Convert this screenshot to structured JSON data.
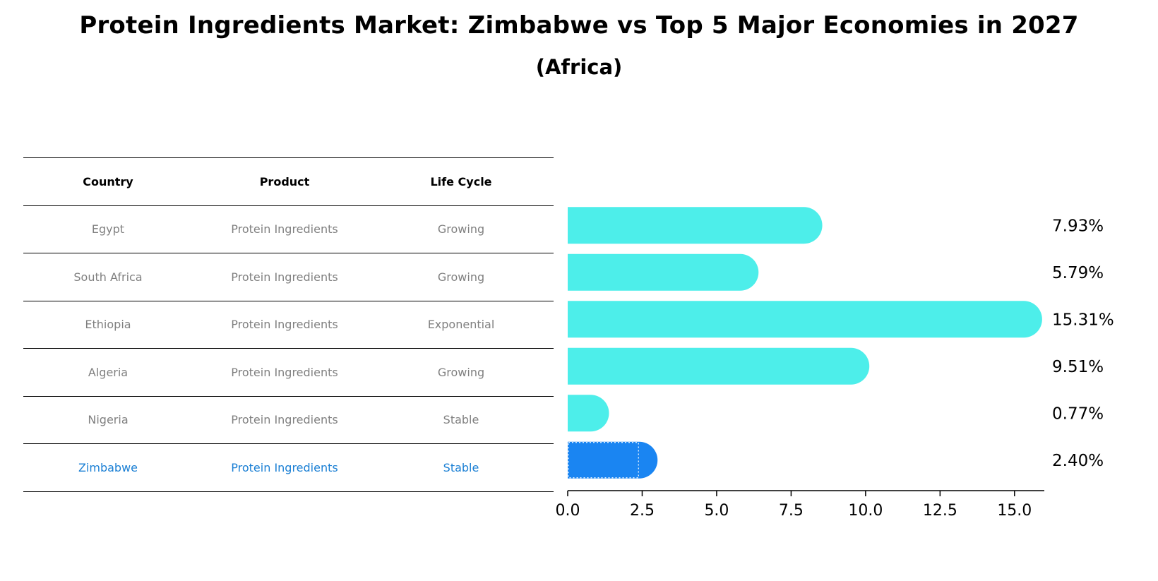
{
  "title": "Protein Ingredients Market: Zimbabwe vs Top 5 Major Economies in 2027",
  "subtitle": "(Africa)",
  "table": {
    "headers": [
      "Country",
      "Product",
      "Life Cycle"
    ],
    "rows": [
      [
        "Egypt",
        "Protein Ingredients",
        "Growing"
      ],
      [
        "South Africa",
        "Protein Ingredients",
        "Growing"
      ],
      [
        "Ethiopia",
        "Protein Ingredients",
        "Exponential"
      ],
      [
        "Algeria",
        "Protein Ingredients",
        "Growing"
      ],
      [
        "Nigeria",
        "Protein Ingredients",
        "Stable"
      ],
      [
        "Zimbabwe",
        "Protein Ingredients",
        "Stable"
      ]
    ],
    "highlight_row": 5
  },
  "chart_data": {
    "type": "bar",
    "orientation": "horizontal",
    "categories": [
      "Egypt",
      "South Africa",
      "Ethiopia",
      "Algeria",
      "Nigeria",
      "Zimbabwe"
    ],
    "values": [
      7.93,
      5.79,
      15.31,
      9.51,
      0.77,
      2.4
    ],
    "labels": [
      "7.93%",
      "5.79%",
      "15.31%",
      "9.51%",
      "0.77%",
      "2.40%"
    ],
    "xlim": [
      0,
      16
    ],
    "xticks": [
      0.0,
      2.5,
      5.0,
      7.5,
      10.0,
      12.5,
      15.0
    ],
    "xtick_labels": [
      "0.0",
      "2.5",
      "5.0",
      "7.5",
      "10.0",
      "12.5",
      "15.0"
    ],
    "highlight_index": 5,
    "colors": {
      "bar": "#4deeea",
      "highlight": "#1a85f2",
      "axis": "#000000",
      "text": "#000000"
    }
  }
}
